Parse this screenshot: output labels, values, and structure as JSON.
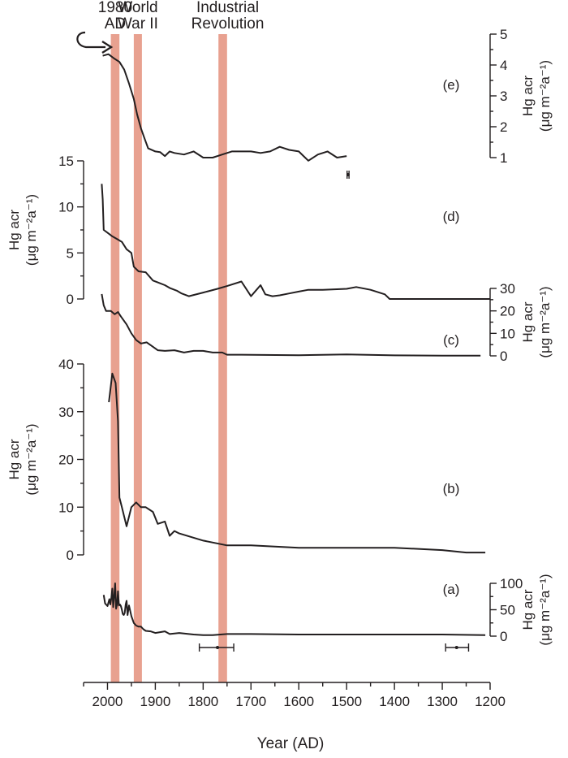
{
  "x_axis": {
    "title": "Year (AD)",
    "ticks": [
      2000,
      1900,
      1800,
      1700,
      1600,
      1500,
      1400,
      1300,
      1200
    ],
    "range": [
      2050,
      1200
    ],
    "reversed": true
  },
  "bands": [
    {
      "label_lines": [
        "1980",
        "AD"
      ],
      "from": 1993,
      "to": 1975
    },
    {
      "label_lines": [
        "World",
        "War II"
      ],
      "from": 1945,
      "to": 1928
    },
    {
      "label_lines": [
        "Industrial",
        "Revolution"
      ],
      "from": 1768,
      "to": 1750
    }
  ],
  "chart_data": [
    {
      "type": "line",
      "panel": "(e)",
      "ylabel": "Hg acr (μg m⁻²a⁻¹)",
      "axis_side": "right",
      "ylim": [
        1,
        5
      ],
      "y_ticks": [
        1,
        2,
        3,
        4,
        5
      ],
      "x": [
        2010,
        1998,
        1985,
        1975,
        1965,
        1955,
        1945,
        1938,
        1930,
        1922,
        1915,
        1900,
        1890,
        1880,
        1870,
        1860,
        1840,
        1820,
        1800,
        1780,
        1760,
        1740,
        1720,
        1700,
        1680,
        1660,
        1640,
        1620,
        1600,
        1590,
        1580,
        1560,
        1540,
        1520,
        1500
      ],
      "y": [
        4.3,
        4.35,
        4.2,
        4.1,
        3.85,
        3.4,
        2.9,
        2.4,
        1.95,
        1.6,
        1.3,
        1.2,
        1.18,
        1.05,
        1.2,
        1.15,
        1.1,
        1.2,
        1.0,
        1.0,
        1.1,
        1.2,
        1.2,
        1.2,
        1.15,
        1.2,
        1.35,
        1.25,
        1.2,
        1.05,
        0.9,
        1.1,
        1.2,
        1.0,
        1.05
      ]
    },
    {
      "type": "line",
      "panel": "(d)",
      "ylabel": "Hg acr (μg m⁻²a⁻¹)",
      "axis_side": "left",
      "ylim": [
        0,
        15
      ],
      "y_ticks": [
        0,
        5,
        10,
        15
      ],
      "x": [
        2012,
        2010,
        2008,
        2000,
        1990,
        1980,
        1970,
        1960,
        1950,
        1945,
        1935,
        1920,
        1905,
        1895,
        1880,
        1870,
        1855,
        1845,
        1830,
        1800,
        1770,
        1750,
        1720,
        1700,
        1690,
        1680,
        1670,
        1655,
        1640,
        1620,
        1600,
        1580,
        1550,
        1500,
        1480,
        1450,
        1420,
        1410,
        1380,
        1300,
        1200
      ],
      "y": [
        12.5,
        10.8,
        7.5,
        7.2,
        6.8,
        6.5,
        6.2,
        5.4,
        5.0,
        3.5,
        3.0,
        2.9,
        2.0,
        1.8,
        1.5,
        1.2,
        0.9,
        0.6,
        0.3,
        0.7,
        1.1,
        1.4,
        1.9,
        0.3,
        0.9,
        1.5,
        0.5,
        0.3,
        0.4,
        0.6,
        0.8,
        1.0,
        1.0,
        1.1,
        1.3,
        1.0,
        0.5,
        0.0,
        0.0,
        0.0,
        0.0
      ]
    },
    {
      "type": "line",
      "panel": "(c)",
      "ylabel": "Hg acr (μg m⁻²a⁻¹)",
      "axis_side": "right",
      "ylim": [
        0,
        30
      ],
      "y_ticks": [
        0,
        10,
        20,
        30
      ],
      "x": [
        2012,
        2008,
        2003,
        1993,
        1985,
        1978,
        1972,
        1960,
        1950,
        1940,
        1930,
        1918,
        1908,
        1895,
        1880,
        1860,
        1840,
        1820,
        1800,
        1780,
        1760,
        1750,
        1720,
        1600,
        1500,
        1400,
        1300,
        1250,
        1220
      ],
      "y": [
        27.5,
        22.5,
        20.0,
        20.0,
        18.5,
        19.5,
        17.5,
        14.0,
        10.0,
        7.0,
        5.5,
        6.0,
        4.5,
        2.5,
        2.2,
        2.5,
        1.5,
        2.2,
        2.2,
        1.5,
        1.5,
        0.5,
        0.5,
        0.3,
        0.6,
        0.2,
        0.1,
        0.1,
        0.1
      ]
    },
    {
      "type": "line",
      "panel": "(b)",
      "ylabel": "Hg acr (μg m⁻²a⁻¹)",
      "axis_side": "left",
      "ylim": [
        0,
        40
      ],
      "y_ticks": [
        0,
        10,
        20,
        30,
        40
      ],
      "x": [
        1997,
        1990,
        1983,
        1978,
        1975,
        1970,
        1960,
        1950,
        1940,
        1930,
        1920,
        1905,
        1895,
        1880,
        1870,
        1860,
        1850,
        1800,
        1750,
        1700,
        1600,
        1500,
        1400,
        1300,
        1250,
        1210
      ],
      "y": [
        32.0,
        38.0,
        36.0,
        28.0,
        12.0,
        10.0,
        6.0,
        10.0,
        11.0,
        10.0,
        10.0,
        9.0,
        6.5,
        7.0,
        4.0,
        5.0,
        4.5,
        3.0,
        2.0,
        2.0,
        1.5,
        1.5,
        1.5,
        1.0,
        0.5,
        0.5
      ]
    },
    {
      "type": "line",
      "panel": "(a)",
      "ylabel": "Hg acr (μg m⁻²a⁻¹)",
      "axis_side": "right",
      "ylim": [
        0,
        100
      ],
      "y_ticks": [
        0,
        50,
        100
      ],
      "x": [
        2008,
        2005,
        2000,
        1996,
        1994,
        1992,
        1990,
        1988,
        1986,
        1984,
        1982,
        1980,
        1978,
        1976,
        1974,
        1972,
        1970,
        1968,
        1966,
        1964,
        1962,
        1960,
        1958,
        1955,
        1950,
        1945,
        1940,
        1935,
        1930,
        1925,
        1920,
        1910,
        1900,
        1880,
        1870,
        1850,
        1820,
        1800,
        1780,
        1750,
        1700,
        1600,
        1500,
        1400,
        1300,
        1210
      ],
      "y": [
        78,
        62,
        57,
        70,
        60,
        72,
        90,
        55,
        75,
        100,
        52,
        60,
        85,
        58,
        60,
        57,
        50,
        42,
        40,
        44,
        60,
        67,
        40,
        58,
        38,
        25,
        20,
        18,
        18,
        13,
        10,
        9,
        6,
        9,
        4,
        6,
        3,
        2,
        2,
        4,
        4,
        3,
        3,
        3,
        3,
        2
      ]
    }
  ],
  "error_bars": [
    {
      "panel": "(e)",
      "year": 1497,
      "value": 0.57,
      "minus": 2,
      "plus": 2
    },
    {
      "panel": "(a)",
      "year": 1770,
      "value": -14,
      "minus": 38,
      "plus": 34
    },
    {
      "panel": "(a)",
      "year": 1270,
      "value": -14,
      "minus": 23,
      "plus": 25
    }
  ]
}
